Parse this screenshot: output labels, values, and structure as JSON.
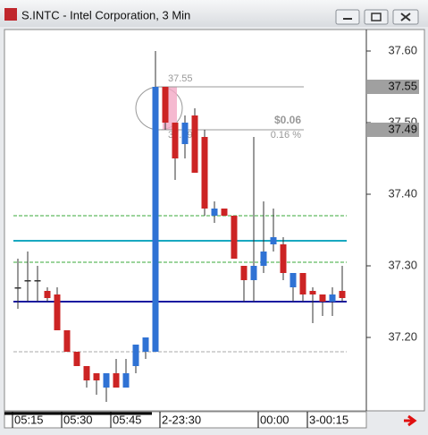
{
  "chart_data": {
    "type": "candlestick",
    "title": "S.INTC - Intel Corporation, 3 Min",
    "categories": [
      "05:15",
      null,
      null,
      null,
      null,
      "05:30",
      null,
      null,
      null,
      null,
      "05:45",
      null,
      null,
      null,
      null,
      "2-23:30",
      null,
      null,
      null,
      null,
      null,
      null,
      null,
      null,
      null,
      "00:00",
      null,
      null,
      null,
      null,
      "3-00:15",
      null,
      null,
      null
    ],
    "open": [
      37.27,
      37.28,
      37.28,
      37.265,
      37.26,
      37.21,
      37.18,
      37.16,
      37.15,
      37.13,
      37.15,
      37.13,
      37.16,
      37.18,
      37.18,
      37.55,
      37.5,
      37.47,
      37.51,
      37.48,
      37.37,
      37.38,
      37.37,
      37.3,
      37.28,
      37.3,
      37.33,
      37.33,
      37.27,
      37.29,
      37.265,
      37.26,
      37.25,
      37.265
    ],
    "high": [
      37.31,
      37.32,
      37.3,
      37.27,
      37.27,
      37.21,
      37.18,
      37.16,
      37.15,
      37.15,
      37.17,
      37.17,
      37.19,
      37.2,
      37.6,
      37.55,
      37.5,
      37.51,
      37.52,
      37.49,
      37.39,
      37.38,
      37.37,
      37.3,
      37.48,
      37.39,
      37.38,
      37.34,
      37.29,
      37.29,
      37.27,
      37.26,
      37.27,
      37.3
    ],
    "low": [
      37.24,
      37.25,
      37.25,
      37.25,
      37.21,
      37.18,
      37.16,
      37.13,
      37.12,
      37.11,
      37.13,
      37.13,
      37.15,
      37.17,
      37.18,
      37.49,
      37.42,
      37.45,
      37.43,
      37.37,
      37.36,
      37.37,
      37.31,
      37.25,
      37.25,
      37.29,
      37.32,
      37.28,
      37.25,
      37.25,
      37.22,
      37.23,
      37.23,
      37.25
    ],
    "close": [
      37.27,
      37.28,
      37.28,
      37.255,
      37.21,
      37.18,
      37.16,
      37.14,
      37.14,
      37.15,
      37.13,
      37.15,
      37.19,
      37.2,
      37.55,
      37.5,
      37.45,
      37.5,
      37.43,
      37.38,
      37.38,
      37.37,
      37.31,
      37.28,
      37.3,
      37.32,
      37.34,
      37.29,
      37.29,
      37.26,
      37.26,
      37.25,
      37.26,
      37.255
    ],
    "up_color": "#2f72d4",
    "down_color": "#cc2424",
    "ylim": [
      37.1,
      37.625
    ],
    "yticks": [
      {
        "value": 37.6,
        "label": "37.60"
      },
      {
        "value": 37.5,
        "label": "37.50"
      },
      {
        "value": 37.4,
        "label": "37.40"
      },
      {
        "value": 37.3,
        "label": "37.30"
      },
      {
        "value": 37.2,
        "label": "37.20"
      }
    ],
    "hlines": [
      {
        "value": 37.37,
        "color": "#3aaa3a",
        "style": "dashed"
      },
      {
        "value": 37.335,
        "color": "#19a8c0",
        "style": "solid"
      },
      {
        "value": 37.305,
        "color": "#3aaa3a",
        "style": "dashed"
      },
      {
        "value": 37.25,
        "color": "#1a1aa0",
        "style": "solid"
      },
      {
        "value": 37.18,
        "color": "#aaaaaa",
        "style": "dashed"
      }
    ],
    "price_labels": [
      37.55,
      37.49
    ],
    "measure": {
      "high": 37.55,
      "low": 37.49,
      "change_label": "$0.06",
      "pct_label": "0.16 %"
    }
  }
}
